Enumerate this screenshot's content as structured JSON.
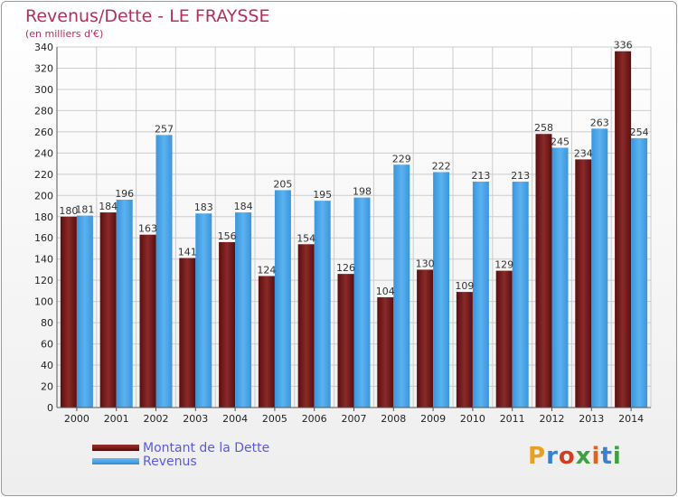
{
  "title": "Revenus/Dette - LE FRAYSSE",
  "subtitle": "(en milliers d'€)",
  "logo_text": "Proxiti",
  "colors": {
    "dette": "#7a1a1a",
    "revenus": "#4aa3e8",
    "grid": "#cccccc"
  },
  "chart_data": {
    "type": "bar",
    "categories": [
      "2000",
      "2001",
      "2002",
      "2003",
      "2004",
      "2005",
      "2006",
      "2007",
      "2008",
      "2009",
      "2010",
      "2011",
      "2012",
      "2013",
      "2014"
    ],
    "series": [
      {
        "name": "Montant de la Dette",
        "values": [
          180,
          184,
          163,
          141,
          156,
          124,
          154,
          126,
          104,
          130,
          109,
          129,
          258,
          234,
          336
        ]
      },
      {
        "name": "Revenus",
        "values": [
          181,
          196,
          257,
          183,
          184,
          205,
          195,
          198,
          229,
          222,
          213,
          213,
          245,
          263,
          254
        ]
      }
    ],
    "ylim": [
      0,
      340
    ],
    "ytick_step": 20,
    "grid": true,
    "legend": "bottom-left"
  }
}
